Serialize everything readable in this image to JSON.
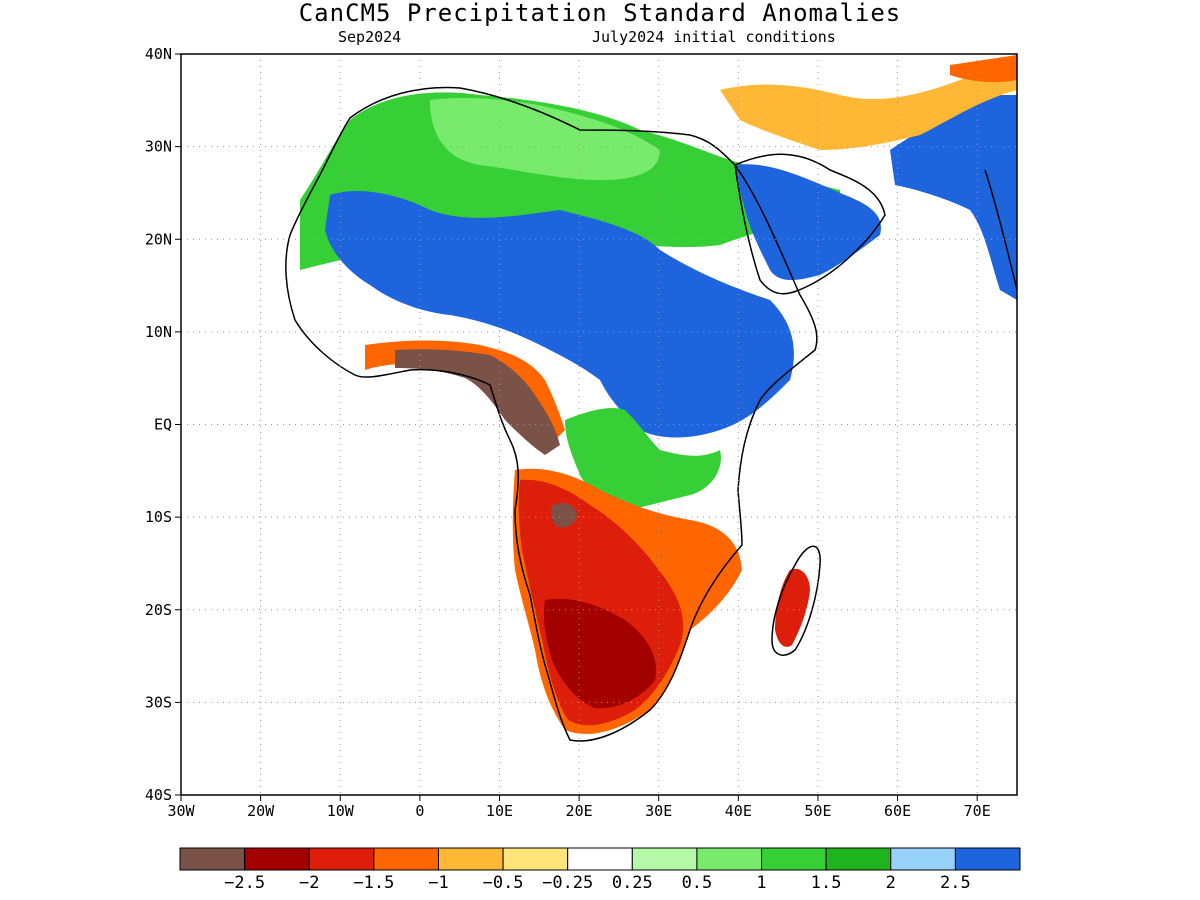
{
  "title": "CanCM5 Precipitation Standard Anomalies",
  "subtitle_left": "Sep2024",
  "subtitle_right": "July2024 initial conditions",
  "lat_labels": [
    "40N",
    "30N",
    "20N",
    "10N",
    "EQ",
    "10S",
    "20S",
    "30S",
    "40S"
  ],
  "lon_labels": [
    "30W",
    "20W",
    "10W",
    "0",
    "10E",
    "20E",
    "30E",
    "40E",
    "50E",
    "60E",
    "70E"
  ],
  "colorbar": {
    "colors": [
      "#7a5248",
      "#a30000",
      "#dc1e0a",
      "#ff6600",
      "#ffb836",
      "#ffe47c",
      "#ffffff",
      "#b4f8a8",
      "#78eb6c",
      "#36d036",
      "#1eb41e",
      "#96d2fa",
      "#1e64dc"
    ],
    "labels": [
      "−2.5",
      "−2",
      "−1.5",
      "−1",
      "−0.5",
      "−0.25",
      "0.25",
      "0.5",
      "1",
      "1.5",
      "2",
      "2.5"
    ]
  },
  "anomaly_regions": [
    {
      "name": "Sahel and Sudan",
      "category": "2.5"
    },
    {
      "name": "Arabian Peninsula",
      "category": "2.5"
    },
    {
      "name": "Southern Africa",
      "category": "−1.5"
    },
    {
      "name": "Gulf of Guinea coast and Congo",
      "category": "−2.5"
    },
    {
      "name": "Madagascar",
      "category": "−1.5"
    }
  ]
}
